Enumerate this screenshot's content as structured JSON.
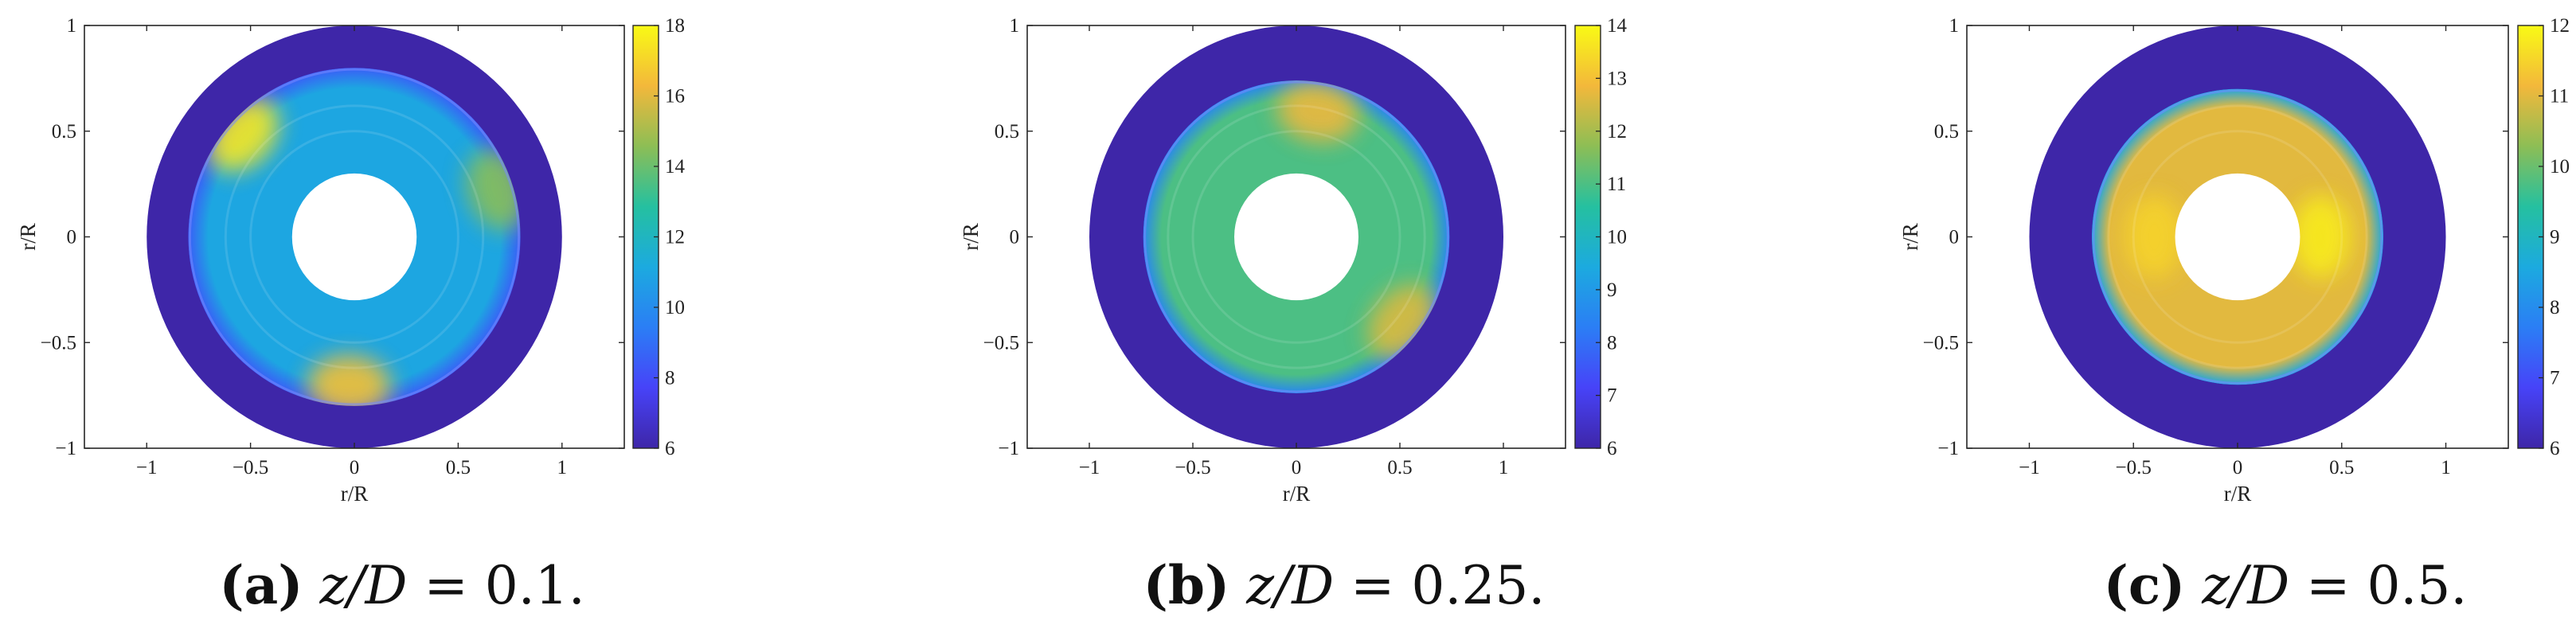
{
  "colors": {
    "ring": "#3e26a8",
    "hub": "#ffffff",
    "axis": "#262626",
    "colormap": [
      "#3e26a8",
      "#4743f8",
      "#2b7ef5",
      "#1caadf",
      "#25c0a0",
      "#8dbe55",
      "#f3b83b",
      "#f9fa15"
    ]
  },
  "chart_data": [
    {
      "type": "heatmap",
      "caption": {
        "letter": "(a)",
        "lhs": "z/D",
        "eq": "=",
        "value": "0.1."
      },
      "xlabel": "r/R",
      "ylabel": "r/R",
      "xlim": [
        -1.3,
        1.3
      ],
      "ylim": [
        -1,
        1
      ],
      "xticks": [
        -1,
        -0.5,
        0,
        0.5,
        1
      ],
      "xtick_labels": [
        "−1",
        "−0.5",
        "0",
        "0.5",
        "1"
      ],
      "yticks": [
        -1,
        -0.5,
        0,
        0.5,
        1
      ],
      "ytick_labels": [
        "−1",
        "−0.5",
        "0",
        "0.5",
        "1"
      ],
      "colorbar": {
        "min": 6,
        "max": 18,
        "ticks": [
          6,
          8,
          10,
          12,
          14,
          16,
          18
        ],
        "labels": [
          "6",
          "8",
          "10",
          "12",
          "14",
          "16",
          "18"
        ]
      },
      "annulus": {
        "outer_radius": 1.0,
        "field_radius": 0.8,
        "hub_radius": 0.3
      },
      "field_base_value": 11,
      "hotspots": [
        {
          "r": 0.72,
          "theta_deg": 138,
          "value": 17.5
        },
        {
          "r": 0.7,
          "theta_deg": 268,
          "value": 16.5
        },
        {
          "r": 0.72,
          "theta_deg": 18,
          "value": 14.5
        }
      ]
    },
    {
      "type": "heatmap",
      "caption": {
        "letter": "(b)",
        "lhs": "z/D",
        "eq": "=",
        "value": "0.25."
      },
      "xlabel": "r/R",
      "ylabel": "r/R",
      "xlim": [
        -1.3,
        1.3
      ],
      "ylim": [
        -1,
        1
      ],
      "xticks": [
        -1,
        -0.5,
        0,
        0.5,
        1
      ],
      "xtick_labels": [
        "−1",
        "−0.5",
        "0",
        "0.5",
        "1"
      ],
      "yticks": [
        -1,
        -0.5,
        0,
        0.5,
        1
      ],
      "ytick_labels": [
        "−1",
        "−0.5",
        "0",
        "0.5",
        "1"
      ],
      "colorbar": {
        "min": 6,
        "max": 14,
        "ticks": [
          6,
          7,
          8,
          9,
          10,
          11,
          12,
          13,
          14
        ],
        "labels": [
          "6",
          "7",
          "8",
          "9",
          "10",
          "11",
          "12",
          "13",
          "14"
        ]
      },
      "annulus": {
        "outer_radius": 1.0,
        "field_radius": 0.74,
        "hub_radius": 0.3
      },
      "field_base_value": 11,
      "hotspots": [
        {
          "r": 0.6,
          "theta_deg": 80,
          "value": 12.8
        },
        {
          "r": 0.65,
          "theta_deg": 322,
          "value": 12.6
        }
      ]
    },
    {
      "type": "heatmap",
      "caption": {
        "letter": "(c)",
        "lhs": "z/D",
        "eq": "=",
        "value": "0.5."
      },
      "xlabel": "r/R",
      "ylabel": "r/R",
      "xlim": [
        -1.3,
        1.3
      ],
      "ylim": [
        -1,
        1
      ],
      "xticks": [
        -1,
        -0.5,
        0,
        0.5,
        1
      ],
      "xtick_labels": [
        "−1",
        "−0.5",
        "0",
        "0.5",
        "1"
      ],
      "yticks": [
        -1,
        -0.5,
        0,
        0.5,
        1
      ],
      "ytick_labels": [
        "−1",
        "−0.5",
        "0",
        "0.5",
        "1"
      ],
      "colorbar": {
        "min": 6,
        "max": 12,
        "ticks": [
          6,
          7,
          8,
          9,
          10,
          11,
          12
        ],
        "labels": [
          "6",
          "7",
          "8",
          "9",
          "10",
          "11",
          "12"
        ]
      },
      "annulus": {
        "outer_radius": 1.0,
        "field_radius": 0.7,
        "hub_radius": 0.3
      },
      "field_base_value": 11,
      "hotspots": [
        {
          "r": 0.4,
          "theta_deg": 0,
          "value": 11.8
        },
        {
          "r": 0.4,
          "theta_deg": 180,
          "value": 11.5
        }
      ]
    }
  ]
}
